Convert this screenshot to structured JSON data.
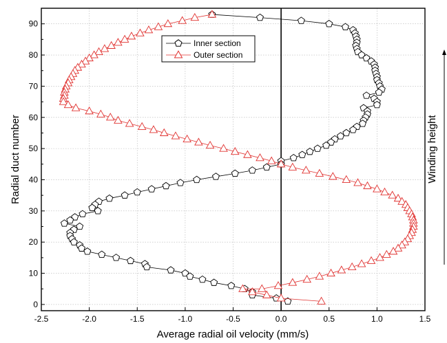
{
  "chart_data": {
    "type": "line",
    "title": "",
    "xlabel": "Average radial oil velocity (mm/s)",
    "ylabel": "Radial duct number",
    "side_label": "Winding height",
    "xlim": [
      -2.5,
      1.5
    ],
    "ylim": [
      -2,
      95
    ],
    "x_ticks": [
      "-2.5",
      "-2.0",
      "-1.5",
      "-1.0",
      "-0.5",
      "0.0",
      "0.5",
      "1.0",
      "1.5"
    ],
    "y_ticks": [
      "0",
      "10",
      "20",
      "30",
      "40",
      "50",
      "60",
      "70",
      "80",
      "90"
    ],
    "grid": true,
    "zero_line": true,
    "legend_position": "top-center",
    "series": [
      {
        "name": "Inner section",
        "color": "#000000",
        "marker": "pentagon",
        "points": [
          [
            -0.72,
            93
          ],
          [
            -0.22,
            92
          ],
          [
            0.21,
            91
          ],
          [
            0.5,
            90
          ],
          [
            0.67,
            89
          ],
          [
            0.75,
            88
          ],
          [
            0.77,
            87
          ],
          [
            0.78,
            86
          ],
          [
            0.79,
            85
          ],
          [
            0.79,
            84
          ],
          [
            0.78,
            83
          ],
          [
            0.79,
            82
          ],
          [
            0.8,
            81
          ],
          [
            0.84,
            80
          ],
          [
            0.89,
            79
          ],
          [
            0.94,
            78
          ],
          [
            0.97,
            77
          ],
          [
            0.98,
            76
          ],
          [
            0.98,
            75
          ],
          [
            0.99,
            74
          ],
          [
            1.0,
            73
          ],
          [
            1.0,
            72
          ],
          [
            1.02,
            71
          ],
          [
            1.03,
            70
          ],
          [
            1.05,
            69
          ],
          [
            1.02,
            68
          ],
          [
            0.89,
            67
          ],
          [
            0.97,
            66
          ],
          [
            1.0,
            65
          ],
          [
            1.0,
            64
          ],
          [
            0.86,
            63
          ],
          [
            0.9,
            62
          ],
          [
            0.9,
            61
          ],
          [
            0.88,
            60
          ],
          [
            0.86,
            59
          ],
          [
            0.85,
            58
          ],
          [
            0.79,
            57
          ],
          [
            0.75,
            56
          ],
          [
            0.68,
            55
          ],
          [
            0.62,
            54
          ],
          [
            0.56,
            53
          ],
          [
            0.52,
            52
          ],
          [
            0.47,
            51
          ],
          [
            0.38,
            50
          ],
          [
            0.3,
            49
          ],
          [
            0.22,
            48
          ],
          [
            0.13,
            47
          ],
          [
            0.0,
            46
          ],
          [
            0.0,
            45
          ],
          [
            -0.15,
            44
          ],
          [
            -0.3,
            43
          ],
          [
            -0.48,
            42
          ],
          [
            -0.68,
            41
          ],
          [
            -0.88,
            40
          ],
          [
            -1.05,
            39
          ],
          [
            -1.2,
            38
          ],
          [
            -1.35,
            37
          ],
          [
            -1.5,
            36
          ],
          [
            -1.63,
            35
          ],
          [
            -1.79,
            34
          ],
          [
            -1.9,
            33
          ],
          [
            -1.94,
            32
          ],
          [
            -1.97,
            31
          ],
          [
            -1.91,
            30
          ],
          [
            -2.07,
            29
          ],
          [
            -2.15,
            28
          ],
          [
            -2.2,
            27
          ],
          [
            -2.26,
            26
          ],
          [
            -2.1,
            25
          ],
          [
            -2.16,
            24
          ],
          [
            -2.2,
            23
          ],
          [
            -2.2,
            22
          ],
          [
            -2.18,
            21
          ],
          [
            -2.16,
            20
          ],
          [
            -2.1,
            19
          ],
          [
            -2.08,
            18
          ],
          [
            -2.02,
            17
          ],
          [
            -1.87,
            16
          ],
          [
            -1.72,
            15
          ],
          [
            -1.57,
            14
          ],
          [
            -1.42,
            13
          ],
          [
            -1.4,
            12
          ],
          [
            -1.15,
            11
          ],
          [
            -1.0,
            10
          ],
          [
            -0.95,
            9
          ],
          [
            -0.82,
            8
          ],
          [
            -0.7,
            7
          ],
          [
            -0.52,
            6
          ],
          [
            -0.38,
            5
          ],
          [
            -0.3,
            4
          ],
          [
            -0.3,
            3
          ],
          [
            -0.05,
            2
          ],
          [
            0.07,
            1
          ]
        ]
      },
      {
        "name": "Outer section",
        "color": "#e0312f",
        "marker": "triangle",
        "points": [
          [
            -0.72,
            93
          ],
          [
            -0.9,
            92
          ],
          [
            -1.03,
            91
          ],
          [
            -1.18,
            90
          ],
          [
            -1.28,
            89
          ],
          [
            -1.38,
            88
          ],
          [
            -1.47,
            87
          ],
          [
            -1.56,
            86
          ],
          [
            -1.63,
            85
          ],
          [
            -1.7,
            84
          ],
          [
            -1.77,
            83
          ],
          [
            -1.84,
            82
          ],
          [
            -1.9,
            81
          ],
          [
            -1.95,
            80
          ],
          [
            -2.0,
            79
          ],
          [
            -2.04,
            78
          ],
          [
            -2.08,
            77
          ],
          [
            -2.12,
            76
          ],
          [
            -2.15,
            75
          ],
          [
            -2.17,
            74
          ],
          [
            -2.19,
            73
          ],
          [
            -2.21,
            72
          ],
          [
            -2.22,
            71
          ],
          [
            -2.24,
            70
          ],
          [
            -2.25,
            69
          ],
          [
            -2.26,
            68
          ],
          [
            -2.26,
            67
          ],
          [
            -2.27,
            66
          ],
          [
            -2.27,
            65
          ],
          [
            -2.22,
            64
          ],
          [
            -2.14,
            63
          ],
          [
            -2.0,
            62
          ],
          [
            -1.88,
            61
          ],
          [
            -1.78,
            60
          ],
          [
            -1.7,
            59
          ],
          [
            -1.58,
            58
          ],
          [
            -1.45,
            57
          ],
          [
            -1.33,
            56
          ],
          [
            -1.22,
            55
          ],
          [
            -1.1,
            54
          ],
          [
            -0.98,
            53
          ],
          [
            -0.86,
            52
          ],
          [
            -0.74,
            51
          ],
          [
            -0.6,
            50
          ],
          [
            -0.48,
            49
          ],
          [
            -0.35,
            48
          ],
          [
            -0.22,
            47
          ],
          [
            -0.1,
            46
          ],
          [
            0.0,
            45
          ],
          [
            0.12,
            44
          ],
          [
            0.26,
            43
          ],
          [
            0.4,
            42
          ],
          [
            0.54,
            41
          ],
          [
            0.68,
            40
          ],
          [
            0.8,
            39
          ],
          [
            0.9,
            38
          ],
          [
            1.0,
            37
          ],
          [
            1.08,
            36
          ],
          [
            1.16,
            35
          ],
          [
            1.22,
            34
          ],
          [
            1.26,
            33
          ],
          [
            1.3,
            32
          ],
          [
            1.32,
            31
          ],
          [
            1.34,
            30
          ],
          [
            1.36,
            29
          ],
          [
            1.37,
            28
          ],
          [
            1.38,
            27
          ],
          [
            1.38,
            26
          ],
          [
            1.38,
            25
          ],
          [
            1.37,
            24
          ],
          [
            1.36,
            23
          ],
          [
            1.34,
            22
          ],
          [
            1.32,
            21
          ],
          [
            1.29,
            20
          ],
          [
            1.26,
            19
          ],
          [
            1.22,
            18
          ],
          [
            1.17,
            17
          ],
          [
            1.1,
            16
          ],
          [
            1.03,
            15
          ],
          [
            0.94,
            14
          ],
          [
            0.84,
            13
          ],
          [
            0.74,
            12
          ],
          [
            0.63,
            11
          ],
          [
            0.52,
            10
          ],
          [
            0.4,
            9
          ],
          [
            0.27,
            8
          ],
          [
            0.12,
            7
          ],
          [
            -0.03,
            6
          ],
          [
            -0.2,
            5
          ],
          [
            -0.4,
            5
          ],
          [
            -0.3,
            4
          ],
          [
            -0.15,
            3
          ],
          [
            0.0,
            2
          ],
          [
            0.42,
            1
          ]
        ]
      }
    ]
  }
}
